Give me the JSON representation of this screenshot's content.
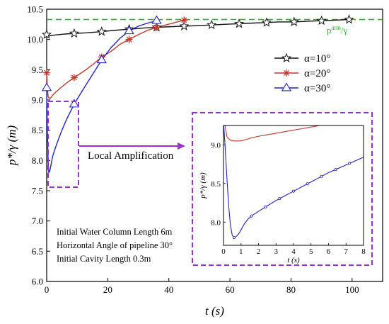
{
  "chart_data": {
    "type": "line",
    "xlabel": "t (s)",
    "ylabel": "p*/γ (m)",
    "xlim": [
      0,
      110
    ],
    "ylim": [
      6.0,
      10.5
    ],
    "xticks": [
      0,
      20,
      40,
      60,
      80,
      100
    ],
    "yticks": [
      6.0,
      6.5,
      7.0,
      7.5,
      8.0,
      8.5,
      9.0,
      9.5,
      10.0,
      10.5
    ],
    "reference_line": {
      "label": "p^atm/γ",
      "label_main": "p",
      "label_sup": "atm",
      "label_tail": "/γ",
      "y": 10.33,
      "color": "#22bb22"
    },
    "legend_position": "upper-right",
    "series": [
      {
        "name": "α=10°",
        "color": "#111111",
        "marker": "star",
        "x": [
          0,
          0.5,
          1,
          2,
          4,
          6,
          9,
          13,
          18,
          22,
          27,
          32,
          36,
          40,
          45,
          50,
          54,
          58,
          63,
          67,
          72,
          76,
          81,
          85,
          90,
          95,
          99
        ],
        "y": [
          10.08,
          10.05,
          10.06,
          10.07,
          10.08,
          10.09,
          10.1,
          10.11,
          10.13,
          10.15,
          10.17,
          10.19,
          10.2,
          10.21,
          10.22,
          10.23,
          10.24,
          10.25,
          10.26,
          10.27,
          10.28,
          10.29,
          10.29,
          10.3,
          10.31,
          10.32,
          10.33
        ],
        "marker_x": [
          0,
          9,
          18,
          27,
          36,
          45,
          54,
          63,
          72,
          81,
          90,
          99
        ]
      },
      {
        "name": "α=20°",
        "color": "#c0392b",
        "marker": "asterisk",
        "x": [
          0,
          0.2,
          0.5,
          1,
          1.5,
          2,
          3,
          5,
          7,
          9,
          12,
          15,
          18,
          21,
          24,
          27,
          30,
          33,
          36,
          39,
          42,
          45
        ],
        "y": [
          9.45,
          9.2,
          9.05,
          9.02,
          9.05,
          9.08,
          9.13,
          9.22,
          9.3,
          9.37,
          9.47,
          9.58,
          9.71,
          9.8,
          9.92,
          10.0,
          10.08,
          10.15,
          10.2,
          10.24,
          10.28,
          10.32
        ],
        "marker_x": [
          0,
          9,
          18,
          27,
          36,
          45
        ]
      },
      {
        "name": "α=30°",
        "color": "#2222cc",
        "marker": "triangle",
        "x": [
          0,
          0.2,
          0.5,
          0.7,
          1,
          1.5,
          2,
          3,
          4,
          5,
          6,
          7,
          8,
          9,
          12,
          15,
          18,
          21,
          24,
          27,
          30,
          33,
          36
        ],
        "y": [
          9.2,
          8.5,
          7.95,
          7.8,
          7.82,
          7.95,
          8.08,
          8.23,
          8.37,
          8.5,
          8.62,
          8.73,
          8.83,
          8.93,
          9.18,
          9.42,
          9.66,
          9.86,
          10.02,
          10.14,
          10.22,
          10.27,
          10.31
        ],
        "marker_x": [
          0,
          9,
          18,
          27,
          36
        ]
      }
    ]
  },
  "labels": {
    "local_amplification": "Local Amplification",
    "notes": [
      "Initial Water Column Length 6m",
      "Horizontal Angle of pipeline 30°",
      "Initial Cavity Length 0.3m"
    ]
  },
  "inset": {
    "xlabel": "t (s)",
    "ylabel": "p*/γ (m)",
    "xlim": [
      0,
      8
    ],
    "ylim": [
      7.7,
      9.25
    ],
    "xticks": [
      0,
      1,
      2,
      3,
      4,
      5,
      6,
      7,
      8
    ],
    "yticks": [
      8.0,
      8.5,
      9.0
    ],
    "series": [
      {
        "name": "α=20°",
        "color": "#c0392b",
        "x": [
          0.05,
          0.2,
          0.4,
          0.6,
          0.8,
          1.0,
          1.3,
          1.6,
          2.0,
          2.5,
          3.0,
          3.5,
          4.0,
          4.5,
          5.0,
          5.5,
          6.0
        ],
        "y": [
          9.3,
          9.1,
          9.06,
          9.05,
          9.05,
          9.05,
          9.07,
          9.09,
          9.11,
          9.13,
          9.15,
          9.17,
          9.19,
          9.21,
          9.23,
          9.25,
          9.27
        ]
      },
      {
        "name": "α=30°",
        "color": "#2222cc",
        "x": [
          0.0,
          0.1,
          0.2,
          0.3,
          0.4,
          0.5,
          0.6,
          0.7,
          0.8,
          0.9,
          1.0,
          1.2,
          1.4,
          1.6,
          2.0,
          2.5,
          3.0,
          3.5,
          4.0,
          4.5,
          5.0,
          5.5,
          6.0,
          6.5,
          7.0,
          7.5,
          8.0
        ],
        "y": [
          9.3,
          8.95,
          8.55,
          8.2,
          7.95,
          7.83,
          7.8,
          7.81,
          7.83,
          7.86,
          7.9,
          7.98,
          8.04,
          8.08,
          8.14,
          8.21,
          8.28,
          8.34,
          8.4,
          8.46,
          8.52,
          8.58,
          8.64,
          8.69,
          8.74,
          8.79,
          8.84
        ],
        "marker_x": [
          0.6,
          1.6,
          2.4,
          3.2,
          4.0,
          4.8,
          5.6,
          6.4,
          7.2
        ]
      }
    ]
  }
}
